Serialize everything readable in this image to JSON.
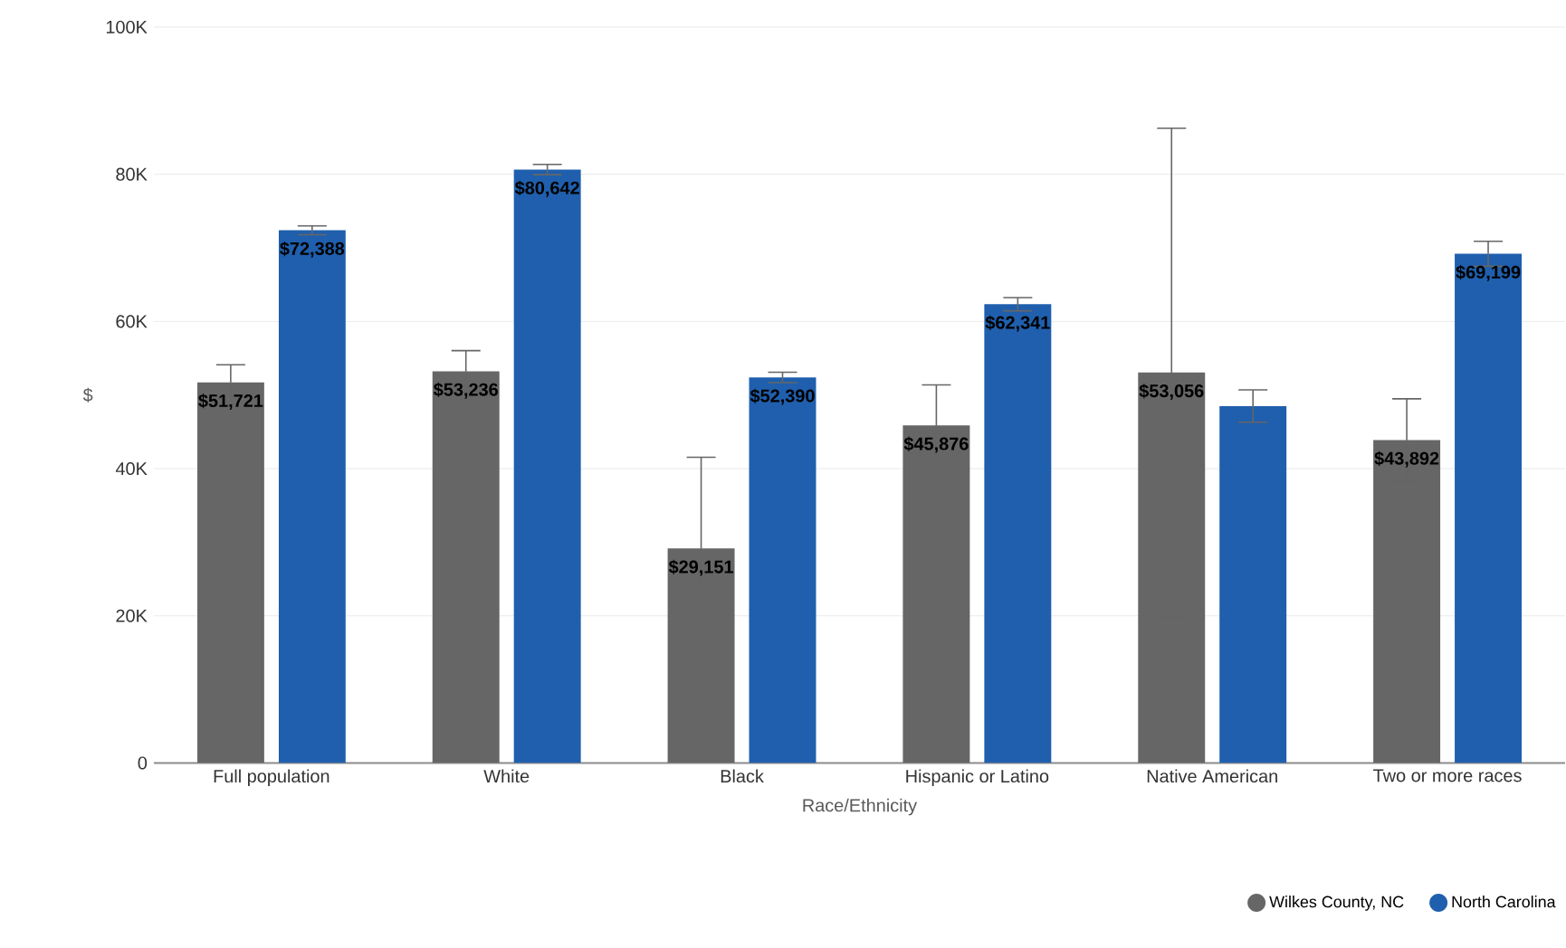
{
  "chart_data": {
    "type": "bar",
    "xlabel": "Race/Ethnicity",
    "ylabel": "$",
    "categories": [
      "Full population",
      "White",
      "Black",
      "Hispanic or Latino",
      "Native American",
      "Two or more races"
    ],
    "series": [
      {
        "name": "Wilkes County, NC",
        "color": "#666666",
        "values": [
          51721,
          53236,
          29151,
          45876,
          53056,
          43892
        ],
        "errors": [
          2400,
          2800,
          12400,
          5500,
          33200,
          5600
        ],
        "value_labels": [
          "$51,721",
          "$53,236",
          "$29,151",
          "$45,876",
          "$53,056",
          "$43,892"
        ]
      },
      {
        "name": "North Carolina",
        "color": "#1f5fad",
        "values": [
          72388,
          80642,
          52390,
          62341,
          48500,
          69199
        ],
        "errors": [
          600,
          700,
          700,
          900,
          2200,
          1700
        ],
        "value_labels": [
          "$72,388",
          "$80,642",
          "$52,390",
          "$62,341",
          null,
          "$69,199"
        ]
      }
    ],
    "ylim": [
      0,
      100000
    ],
    "yticks": [
      0,
      {
        "value": 20000,
        "label": "20K"
      },
      {
        "value": 40000,
        "label": "40K"
      },
      {
        "value": 60000,
        "label": "60K"
      },
      {
        "value": 80000,
        "label": "80K"
      },
      {
        "value": 100000,
        "label": "100K"
      }
    ],
    "grid": "y",
    "legend": "bottom right"
  }
}
